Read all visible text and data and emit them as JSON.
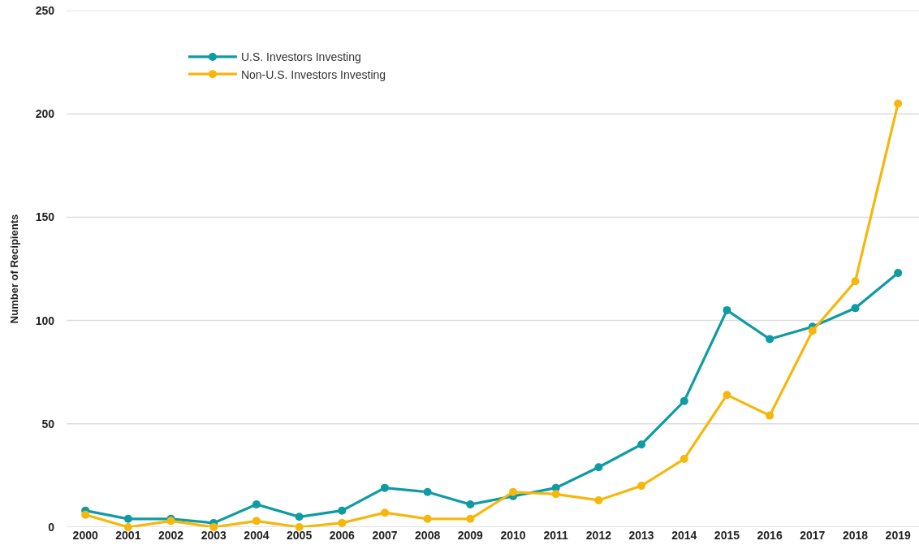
{
  "chart_data": {
    "type": "line",
    "ylabel": "Number of Recipients",
    "categories": [
      "2000",
      "2001",
      "2002",
      "2003",
      "2004",
      "2005",
      "2006",
      "2007",
      "2008",
      "2009",
      "2010",
      "2011",
      "2012",
      "2013",
      "2014",
      "2015",
      "2016",
      "2017",
      "2018",
      "2019"
    ],
    "series": [
      {
        "name": "U.S. Investors Investing",
        "color": "#0f9ba3",
        "values": [
          8,
          4,
          4,
          2,
          11,
          5,
          8,
          19,
          17,
          11,
          15,
          19,
          29,
          40,
          61,
          105,
          91,
          97,
          106,
          123
        ]
      },
      {
        "name": "Non-U.S. Investors Investing",
        "color": "#f6b70d",
        "values": [
          6,
          0,
          3,
          0,
          3,
          0,
          2,
          7,
          4,
          4,
          17,
          16,
          13,
          20,
          33,
          64,
          54,
          95,
          119,
          205
        ]
      }
    ],
    "ylim": [
      0,
      250
    ],
    "yticks": [
      0,
      50,
      100,
      150,
      200,
      250
    ],
    "grid": "y",
    "legend": "top left",
    "marker": "circle",
    "line_style": "solid"
  }
}
